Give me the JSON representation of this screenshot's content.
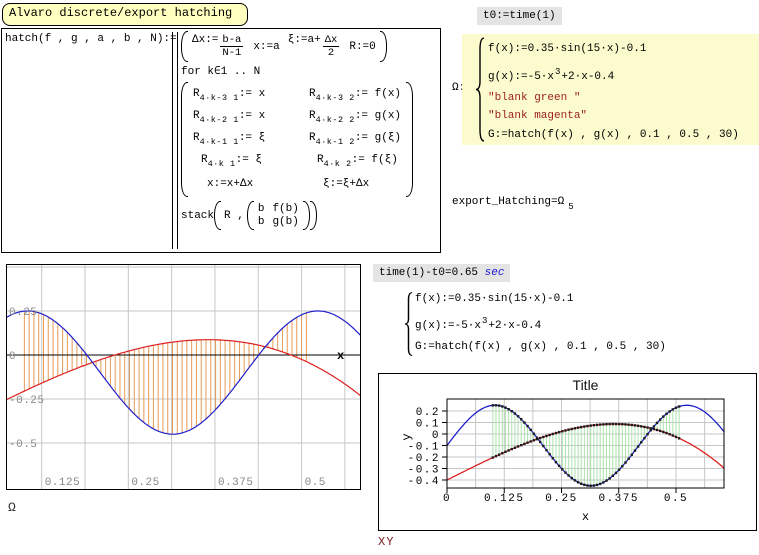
{
  "header": {
    "title": "Alvaro discrete/export hatching"
  },
  "program": {
    "lhs": "hatch(f , g , a , b , N):=",
    "init": {
      "p1": "Δx:=",
      "f1n": "b-a",
      "f1d": "N-1",
      "p2": "x:=a",
      "p3": "ξ:=a+",
      "f2n": "Δx",
      "f2d": "2",
      "p4": "R:=0"
    },
    "for_line": "for k∈1 .. N",
    "rows": [
      {
        "lb": "R",
        "ls": "4·k-3 1",
        "lr": ":= x",
        "rb": "R",
        "rs": "4·k-3 2",
        "rr": ":= f(x)"
      },
      {
        "lb": "R",
        "ls": "4·k-2 1",
        "lr": ":= x",
        "rb": "R",
        "rs": "4·k-2 2",
        "rr": ":= g(x)"
      },
      {
        "lb": "R",
        "ls": "4·k-1 1",
        "lr": ":= ξ",
        "rb": "R",
        "rs": "4·k-1 2",
        "rr": ":= g(ξ)"
      },
      {
        "lb": "R",
        "ls": "4·k 1",
        "lr": ":= ξ",
        "rb": "R",
        "rs": "4·k 2",
        "rr": ":= f(ξ)"
      }
    ],
    "update": {
      "left": "x:=x+Δx",
      "right": "ξ:=ξ+Δx"
    },
    "stack": {
      "fn": "stack",
      "arg": "R ,",
      "m": [
        [
          "b",
          "f(b)"
        ],
        [
          "b",
          "g(b)"
        ]
      ]
    }
  },
  "top_right": {
    "t0": "t0:=time(1)"
  },
  "omega": {
    "name": "Ω:=",
    "f": "f(x):=0.35·sin(15·x)-0.1",
    "g_pre": "g(x):=-5·x",
    "g_sup": "3",
    "g_post": "+2·x-0.4",
    "s1": "\"blank green \"",
    "s2": "\"blank  magenta\"",
    "G": "G:=hatch(f(x) , g(x) , 0.1 , 0.5 , 30)"
  },
  "export_line": {
    "text": "export_Hatching=Ω",
    "sub": "5"
  },
  "timing": {
    "text": "time(1)-t0=0.65",
    "unit": "sec"
  },
  "xy": {
    "name": "XY:=",
    "f": "f(x):=0.35·sin(15·x)-0.1",
    "g_pre": "g(x):=-5·x",
    "g_sup": "3",
    "g_post": "+2·x-0.4",
    "G": "G:=hatch(f(x) , g(x) , 0.1 , 0.5 , 30)"
  },
  "chart_data": [
    {
      "name": "omega-hatch-plot",
      "type": "line",
      "x_range": [
        0.0735,
        0.585
      ],
      "y_range": [
        -0.767,
        0.517
      ],
      "x_ticks": [
        0.125,
        0.25,
        0.375,
        0.5
      ],
      "y_ticks": [
        0.25,
        0,
        -0.25,
        -0.5
      ],
      "x_grid_step": 0.0625,
      "y_grid_lines": [
        0.5,
        0.25,
        -0.25,
        -0.5
      ],
      "axis_label": "x",
      "region_label": "Ω",
      "series": [
        {
          "name": "f(x)",
          "formula": "0.35·sin(15·x)-0.1",
          "color": "#2020cc",
          "params": {
            "kind": "sin",
            "amp": 0.35,
            "freq": 15,
            "off": -0.1
          }
        },
        {
          "name": "g(x)",
          "formula": "-5·x^3+2·x-0.4",
          "color": "#dd2020",
          "params": {
            "kind": "poly3",
            "c3": -5,
            "c1": 2,
            "c0": -0.4
          }
        }
      ],
      "hatch": {
        "from": 0.1,
        "to": 0.5,
        "n": 30,
        "color": "#e69a55"
      },
      "grid_color": "#c6c6c6",
      "label_color": "#888888"
    },
    {
      "name": "xy-component-plot",
      "type": "line",
      "title": "Title",
      "xlabel": "x",
      "ylabel": "y",
      "x_range": [
        0,
        0.605
      ],
      "y_range": [
        -0.47,
        0.304
      ],
      "x_ticks": [
        0,
        0.125,
        0.25,
        0.375,
        0.5
      ],
      "y_ticks": [
        0.2,
        0.1,
        0,
        -0.1,
        -0.2,
        -0.3,
        -0.4
      ],
      "x_grid_step": 0.0625,
      "region_label": "XY",
      "series": [
        {
          "name": "f(x)",
          "formula": "0.35·sin(15·x)-0.1",
          "color": "#2020cc",
          "params": {
            "kind": "sin",
            "amp": 0.35,
            "freq": 15,
            "off": -0.1
          }
        },
        {
          "name": "g(x)",
          "formula": "-5·x^3+2·x-0.4",
          "color": "#dd2020",
          "params": {
            "kind": "poly3",
            "c3": -5,
            "c1": 2,
            "c0": -0.4
          }
        }
      ],
      "hatch": {
        "from": 0.1,
        "to": 0.5,
        "n": 30,
        "color": "#ade2ad",
        "marker_color": "#1c1c1c"
      },
      "grid_color": "#c6c6c6",
      "label_color": "#000000"
    }
  ]
}
